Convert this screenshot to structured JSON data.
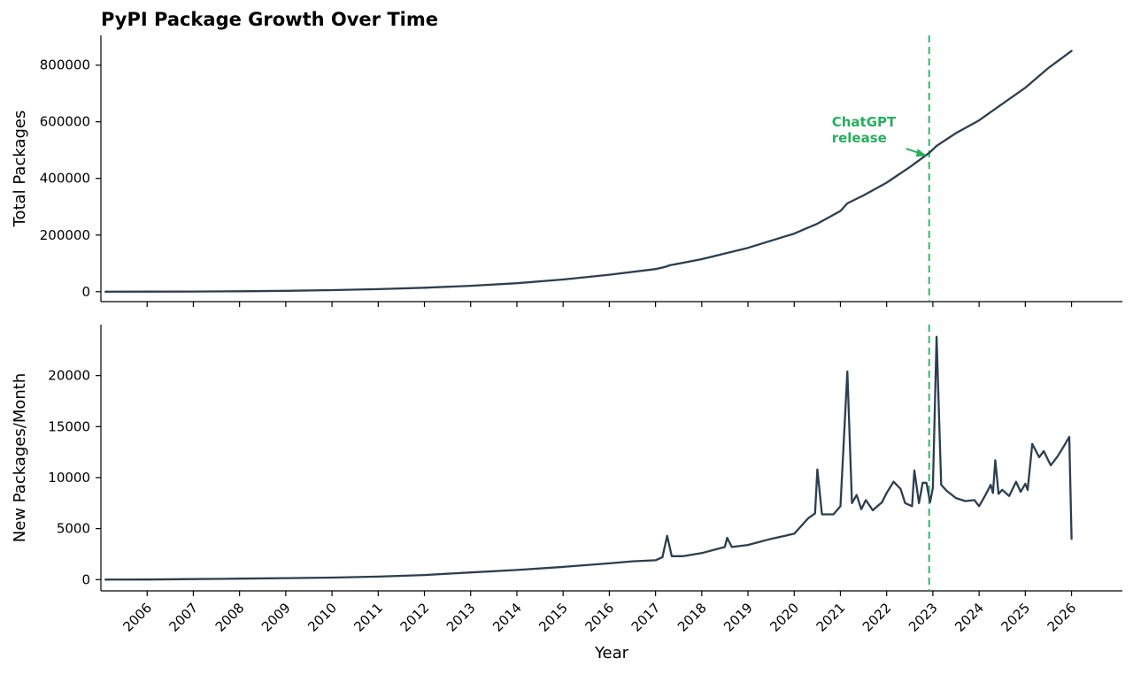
{
  "chart_data": {
    "type": "line",
    "title": "PyPI Package Growth Over Time",
    "xlabel": "Year",
    "x_ticks": [
      "2006",
      "2007",
      "2008",
      "2009",
      "2010",
      "2011",
      "2012",
      "2013",
      "2014",
      "2015",
      "2016",
      "2017",
      "2018",
      "2019",
      "2020",
      "2021",
      "2022",
      "2023",
      "2024",
      "2025",
      "2026"
    ],
    "xlim": [
      2005,
      2027.1
    ],
    "line_color": "#2c3e50",
    "annotation_color": "#27ae60",
    "vline_x": 2022.92,
    "annotation": {
      "text_lines": [
        "ChatGPT",
        "release"
      ],
      "x": 2022.92,
      "y": 480000
    },
    "panels": [
      {
        "ylabel": "Total Packages",
        "ylim": [
          -35000,
          905000
        ],
        "y_ticks": [
          0,
          200000,
          400000,
          600000,
          800000
        ],
        "points": [
          [
            2005.1,
            0
          ],
          [
            2006,
            200
          ],
          [
            2007,
            600
          ],
          [
            2008,
            1500
          ],
          [
            2009,
            3000
          ],
          [
            2010,
            5500
          ],
          [
            2011,
            9000
          ],
          [
            2012,
            14000
          ],
          [
            2013,
            21000
          ],
          [
            2014,
            30000
          ],
          [
            2015,
            43000
          ],
          [
            2016,
            60000
          ],
          [
            2017,
            80000
          ],
          [
            2017.2,
            87000
          ],
          [
            2017.3,
            93000
          ],
          [
            2018,
            115000
          ],
          [
            2019,
            155000
          ],
          [
            2020,
            205000
          ],
          [
            2020.5,
            240000
          ],
          [
            2021,
            285000
          ],
          [
            2021.15,
            312000
          ],
          [
            2021.5,
            340000
          ],
          [
            2022,
            385000
          ],
          [
            2022.5,
            440000
          ],
          [
            2022.92,
            490000
          ],
          [
            2023.08,
            515000
          ],
          [
            2023.5,
            560000
          ],
          [
            2024,
            605000
          ],
          [
            2024.3,
            640000
          ],
          [
            2025,
            720000
          ],
          [
            2025.5,
            790000
          ],
          [
            2026,
            850000
          ]
        ]
      },
      {
        "ylabel": "New Packages/Month",
        "ylim": [
          -1100,
          25000
        ],
        "y_ticks": [
          0,
          5000,
          10000,
          15000,
          20000
        ],
        "points": [
          [
            2005.1,
            0
          ],
          [
            2006,
            10
          ],
          [
            2007,
            50
          ],
          [
            2008,
            100
          ],
          [
            2009,
            150
          ],
          [
            2010,
            200
          ],
          [
            2011,
            300
          ],
          [
            2012,
            450
          ],
          [
            2013,
            700
          ],
          [
            2014,
            950
          ],
          [
            2015,
            1250
          ],
          [
            2016,
            1600
          ],
          [
            2016.5,
            1800
          ],
          [
            2017,
            1900
          ],
          [
            2017.15,
            2200
          ],
          [
            2017.25,
            4300
          ],
          [
            2017.35,
            2300
          ],
          [
            2017.6,
            2300
          ],
          [
            2018,
            2600
          ],
          [
            2018.5,
            3200
          ],
          [
            2018.55,
            4100
          ],
          [
            2018.65,
            3200
          ],
          [
            2019,
            3400
          ],
          [
            2019.5,
            4000
          ],
          [
            2020,
            4500
          ],
          [
            2020.3,
            6000
          ],
          [
            2020.45,
            6500
          ],
          [
            2020.5,
            10800
          ],
          [
            2020.6,
            6400
          ],
          [
            2020.85,
            6400
          ],
          [
            2021,
            7200
          ],
          [
            2021.15,
            20400
          ],
          [
            2021.25,
            7500
          ],
          [
            2021.35,
            8300
          ],
          [
            2021.45,
            6900
          ],
          [
            2021.55,
            7800
          ],
          [
            2021.7,
            6800
          ],
          [
            2021.9,
            7600
          ],
          [
            2022,
            8500
          ],
          [
            2022.15,
            9600
          ],
          [
            2022.3,
            8900
          ],
          [
            2022.4,
            7500
          ],
          [
            2022.55,
            7200
          ],
          [
            2022.6,
            10700
          ],
          [
            2022.7,
            7500
          ],
          [
            2022.78,
            9500
          ],
          [
            2022.86,
            9500
          ],
          [
            2022.94,
            7600
          ],
          [
            2023.0,
            9000
          ],
          [
            2023.08,
            23800
          ],
          [
            2023.18,
            9300
          ],
          [
            2023.3,
            8700
          ],
          [
            2023.5,
            8000
          ],
          [
            2023.7,
            7700
          ],
          [
            2023.9,
            7800
          ],
          [
            2024.0,
            7200
          ],
          [
            2024.15,
            8400
          ],
          [
            2024.25,
            9300
          ],
          [
            2024.3,
            8500
          ],
          [
            2024.35,
            11700
          ],
          [
            2024.42,
            8400
          ],
          [
            2024.5,
            8800
          ],
          [
            2024.65,
            8200
          ],
          [
            2024.8,
            9600
          ],
          [
            2024.9,
            8600
          ],
          [
            2025.0,
            9400
          ],
          [
            2025.05,
            8800
          ],
          [
            2025.15,
            13300
          ],
          [
            2025.3,
            12000
          ],
          [
            2025.4,
            12600
          ],
          [
            2025.55,
            11200
          ],
          [
            2025.7,
            12100
          ],
          [
            2025.85,
            13200
          ],
          [
            2025.95,
            14000
          ],
          [
            2026.0,
            4000
          ]
        ]
      }
    ]
  }
}
